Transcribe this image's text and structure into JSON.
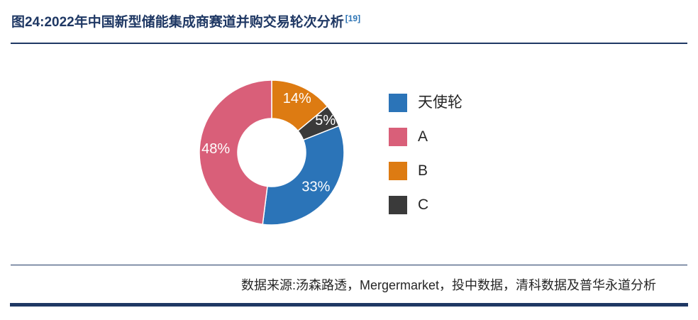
{
  "figure": {
    "title": "图24:2022年中国新型储能集成商赛道并购交易轮次分析",
    "title_ref": "[19]",
    "source": "数据来源:汤森路透，Mergermarket，投中数据，清科数据及普华永道分析"
  },
  "colors": {
    "accent": "#1F3864",
    "title_ref": "#2E75B6",
    "legend_text": "#262626"
  },
  "chart_data": {
    "type": "pie",
    "donut": true,
    "hole_ratio": 0.47,
    "title": "2022年中国新型储能集成商赛道并购交易轮次分析",
    "categories": [
      "天使轮",
      "A",
      "B",
      "C"
    ],
    "values": [
      33,
      48,
      14,
      5
    ],
    "value_labels": [
      "33%",
      "48%",
      "14%",
      "5%"
    ],
    "colors": [
      "#2B74B8",
      "#D95F79",
      "#DD7B12",
      "#3A3A3A"
    ],
    "label_color": "#FFFFFF",
    "legend_position": "right",
    "start_angle_deg": 0,
    "draw_order": [
      2,
      3,
      0,
      1
    ]
  }
}
